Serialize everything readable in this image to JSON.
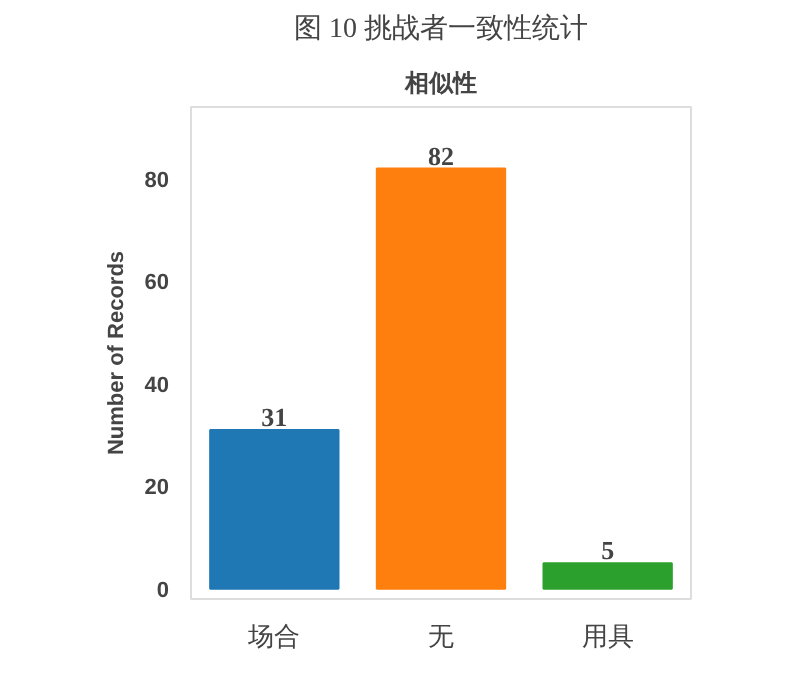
{
  "chart_data": {
    "type": "bar",
    "title": "图 10 挑战者一致性统计",
    "subtitle": "相似性",
    "ylabel": "Number of Records",
    "categories": [
      "场合",
      "无",
      "用具"
    ],
    "values": [
      31,
      82,
      5
    ],
    "colors": [
      "#1f77b4",
      "#ff7f0e",
      "#2ca02c"
    ],
    "ylim": [
      -2,
      94
    ],
    "yticks": [
      0,
      20,
      40,
      60,
      80
    ],
    "grid": false,
    "data_labels": true
  }
}
